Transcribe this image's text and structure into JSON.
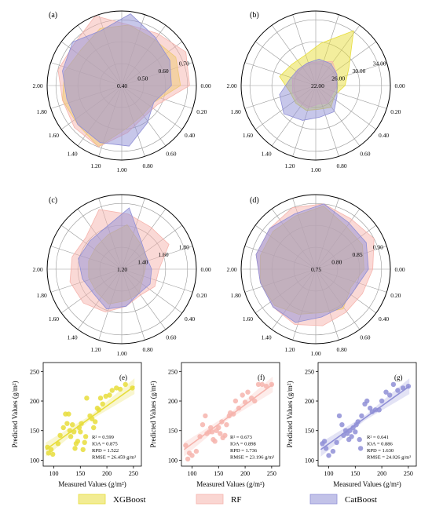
{
  "colors": {
    "xgboost": "#e7dd3b",
    "rf": "#f6b4ad",
    "catboost": "#8f8fd6",
    "axis": "#000000",
    "spoke": "#9a9a9a"
  },
  "legend": {
    "items": [
      {
        "label": "XGBoost",
        "color": "#e7dd3b"
      },
      {
        "label": "RF",
        "color": "#f6b4ad"
      },
      {
        "label": "CatBoost",
        "color": "#8f8fd6"
      }
    ]
  },
  "chart_data": [
    {
      "type": "radar",
      "panel": "(a)",
      "angle_labels": [
        "0.00",
        "0.20",
        "0.40",
        "0.60",
        "0.80",
        "1.00",
        "1.20",
        "1.40",
        "1.60",
        "1.80",
        "2.00"
      ],
      "rings": [
        "0.40",
        "0.50",
        "0.60",
        "0.70"
      ],
      "rmin": 0.4,
      "rmax": 0.73,
      "series": [
        {
          "name": "XGBoost",
          "values": [
            0.66,
            0.67,
            0.65,
            0.67,
            0.67,
            0.64,
            0.66,
            0.67,
            0.66,
            0.69,
            0.59,
            0.56,
            0.56
          ]
        },
        {
          "name": "RF",
          "values": [
            0.7,
            0.72,
            0.68,
            0.67,
            0.73,
            0.68,
            0.69,
            0.67,
            0.68,
            0.69,
            0.61,
            0.57,
            0.58
          ]
        },
        {
          "name": "CatBoost",
          "values": [
            0.62,
            0.64,
            0.66,
            0.72,
            0.66,
            0.69,
            0.67,
            0.65,
            0.66,
            0.67,
            0.67,
            0.6,
            0.56
          ]
        }
      ]
    },
    {
      "type": "radar",
      "panel": "(b)",
      "angle_labels": [
        "0.00",
        "0.20",
        "0.40",
        "0.60",
        "0.80",
        "1.00",
        "1.20",
        "1.40",
        "1.60",
        "1.80",
        "2.00"
      ],
      "rings": [
        "22.00",
        "26.00",
        "30.00",
        "34.00"
      ],
      "rmin": 22.0,
      "rmax": 36.0,
      "series": [
        {
          "name": "XGBoost",
          "values": [
            27.5,
            29.0,
            34.5,
            30.0,
            28.0,
            28.0,
            29.0,
            27.0,
            27.0,
            27.0,
            26.5,
            27.0,
            26.0
          ]
        },
        {
          "name": "RF",
          "values": [
            26.0,
            26.5,
            27.5,
            26.5,
            26.5,
            26.5,
            26.5,
            26.5,
            26.5,
            26.5,
            25.5,
            26.0,
            25.5
          ]
        },
        {
          "name": "CatBoost",
          "values": [
            26.0,
            26.5,
            27.0,
            27.0,
            26.5,
            26.5,
            27.0,
            29.0,
            30.0,
            29.0,
            28.0,
            28.0,
            26.5
          ]
        }
      ]
    },
    {
      "type": "radar",
      "panel": "(c)",
      "angle_labels": [
        "0.00",
        "0.20",
        "0.40",
        "0.60",
        "0.80",
        "1.00",
        "1.20",
        "1.40",
        "1.60",
        "1.80",
        "2.00"
      ],
      "rings": [
        "1.20",
        "1.40",
        "1.60",
        "1.80"
      ],
      "rmin": 1.2,
      "rmax": 1.9,
      "series": [
        {
          "name": "XGBoost",
          "values": [
            1.42,
            1.46,
            1.5,
            1.62,
            1.55,
            1.52,
            1.52,
            1.52,
            1.52,
            1.55,
            1.5,
            1.48,
            1.42
          ]
        },
        {
          "name": "RF",
          "values": [
            1.55,
            1.7,
            1.68,
            1.72,
            1.8,
            1.65,
            1.68,
            1.7,
            1.68,
            1.63,
            1.55,
            1.5,
            1.55
          ]
        },
        {
          "name": "CatBoost",
          "values": [
            1.48,
            1.46,
            1.52,
            1.78,
            1.62,
            1.6,
            1.62,
            1.58,
            1.55,
            1.6,
            1.55,
            1.48,
            1.5
          ]
        }
      ]
    },
    {
      "type": "radar",
      "panel": "(d)",
      "angle_labels": [
        "0.00",
        "0.20",
        "0.40",
        "0.60",
        "0.80",
        "1.00",
        "1.20",
        "1.40",
        "1.60",
        "1.80",
        "2.00"
      ],
      "rings": [
        "0.75",
        "0.80",
        "0.85",
        "0.90"
      ],
      "rmin": 0.75,
      "rmax": 0.92,
      "series": [
        {
          "name": "XGBoost",
          "values": [
            0.86,
            0.87,
            0.87,
            0.895,
            0.88,
            0.88,
            0.88,
            0.88,
            0.875,
            0.86,
            0.85,
            0.86,
            0.84
          ]
        },
        {
          "name": "RF",
          "values": [
            0.88,
            0.9,
            0.89,
            0.9,
            0.9,
            0.89,
            0.89,
            0.88,
            0.88,
            0.885,
            0.88,
            0.87,
            0.87
          ]
        },
        {
          "name": "CatBoost",
          "values": [
            0.87,
            0.88,
            0.88,
            0.9,
            0.885,
            0.89,
            0.89,
            0.88,
            0.88,
            0.88,
            0.86,
            0.855,
            0.85
          ]
        }
      ]
    },
    {
      "type": "scatter",
      "panel": "(e)",
      "series_name": "XGBoost",
      "xlabel": "Measured Values (g/m²)",
      "ylabel": "Predicted Values (g/m²)",
      "xlim": [
        80,
        265
      ],
      "ylim": [
        90,
        265
      ],
      "xticks": [
        "100",
        "150",
        "200",
        "250"
      ],
      "yticks": [
        "100",
        "150",
        "200",
        "250"
      ],
      "fit": {
        "x": [
          85,
          252
        ],
        "y": [
          118,
          225
        ]
      },
      "stats": [
        "R² = 0.599",
        "IOA = 0.875",
        "RPD = 1.522",
        "RMSE = 26.459 g/m²"
      ],
      "points": [
        [
          88,
          122
        ],
        [
          90,
          112
        ],
        [
          95,
          118
        ],
        [
          98,
          110
        ],
        [
          108,
          128
        ],
        [
          112,
          142
        ],
        [
          118,
          155
        ],
        [
          122,
          178
        ],
        [
          125,
          162
        ],
        [
          128,
          178
        ],
        [
          130,
          150
        ],
        [
          132,
          140
        ],
        [
          135,
          160
        ],
        [
          138,
          148
        ],
        [
          140,
          120
        ],
        [
          142,
          128
        ],
        [
          145,
          132
        ],
        [
          148,
          155
        ],
        [
          150,
          148
        ],
        [
          152,
          162
        ],
        [
          155,
          118
        ],
        [
          158,
          130
        ],
        [
          160,
          140
        ],
        [
          162,
          205
        ],
        [
          168,
          175
        ],
        [
          172,
          170
        ],
        [
          175,
          155
        ],
        [
          178,
          165
        ],
        [
          182,
          188
        ],
        [
          185,
          185
        ],
        [
          188,
          205
        ],
        [
          192,
          195
        ],
        [
          198,
          208
        ],
        [
          205,
          210
        ],
        [
          210,
          218
        ],
        [
          218,
          222
        ],
        [
          225,
          220
        ],
        [
          235,
          228
        ],
        [
          248,
          222
        ]
      ]
    },
    {
      "type": "scatter",
      "panel": "(f)",
      "series_name": "RF",
      "xlabel": "Measured Values (g/m²)",
      "ylabel": "Predicted Values (g/m²)",
      "xlim": [
        80,
        265
      ],
      "ylim": [
        90,
        265
      ],
      "xticks": [
        "100",
        "150",
        "200",
        "250"
      ],
      "yticks": [
        "100",
        "150",
        "200",
        "250"
      ],
      "fit": {
        "x": [
          85,
          252
        ],
        "y": [
          118,
          228
        ]
      },
      "stats": [
        "R² = 0.673",
        "IOA = 0.898",
        "RPD = 1.736",
        "RMSE = 23.196 g/m²"
      ],
      "points": [
        [
          88,
          125
        ],
        [
          92,
          102
        ],
        [
          95,
          112
        ],
        [
          100,
          108
        ],
        [
          108,
          115
        ],
        [
          115,
          140
        ],
        [
          120,
          160
        ],
        [
          125,
          175
        ],
        [
          128,
          145
        ],
        [
          132,
          148
        ],
        [
          135,
          155
        ],
        [
          138,
          148
        ],
        [
          140,
          135
        ],
        [
          143,
          132
        ],
        [
          146,
          150
        ],
        [
          150,
          155
        ],
        [
          153,
          145
        ],
        [
          156,
          165
        ],
        [
          158,
          138
        ],
        [
          162,
          142
        ],
        [
          165,
          160
        ],
        [
          170,
          175
        ],
        [
          172,
          180
        ],
        [
          178,
          178
        ],
        [
          182,
          200
        ],
        [
          188,
          188
        ],
        [
          195,
          210
        ],
        [
          200,
          198
        ],
        [
          205,
          215
        ],
        [
          212,
          205
        ],
        [
          218,
          200
        ],
        [
          225,
          228
        ],
        [
          232,
          228
        ],
        [
          240,
          225
        ],
        [
          250,
          228
        ]
      ]
    },
    {
      "type": "scatter",
      "panel": "(g)",
      "series_name": "CatBoost",
      "xlabel": "Measured Values (g/m²)",
      "ylabel": "Predicted Values (g/m²)",
      "xlim": [
        80,
        265
      ],
      "ylim": [
        90,
        265
      ],
      "xticks": [
        "100",
        "150",
        "200",
        "250"
      ],
      "yticks": [
        "100",
        "150",
        "200",
        "250"
      ],
      "fit": {
        "x": [
          85,
          252
        ],
        "y": [
          118,
          225
        ]
      },
      "stats": [
        "R² = 0.641",
        "IOA = 0.886",
        "RPD = 1.630",
        "RMSE = 24.026 g/m²"
      ],
      "points": [
        [
          88,
          128
        ],
        [
          92,
          132
        ],
        [
          95,
          120
        ],
        [
          100,
          108
        ],
        [
          108,
          115
        ],
        [
          115,
          130
        ],
        [
          120,
          175
        ],
        [
          125,
          160
        ],
        [
          128,
          142
        ],
        [
          132,
          150
        ],
        [
          135,
          145
        ],
        [
          138,
          135
        ],
        [
          140,
          150
        ],
        [
          143,
          140
        ],
        [
          146,
          155
        ],
        [
          150,
          148
        ],
        [
          152,
          160
        ],
        [
          155,
          165
        ],
        [
          158,
          135
        ],
        [
          160,
          120
        ],
        [
          162,
          175
        ],
        [
          168,
          195
        ],
        [
          172,
          200
        ],
        [
          178,
          188
        ],
        [
          182,
          182
        ],
        [
          188,
          185
        ],
        [
          195,
          185
        ],
        [
          200,
          200
        ],
        [
          208,
          215
        ],
        [
          215,
          210
        ],
        [
          222,
          228
        ],
        [
          230,
          218
        ],
        [
          240,
          222
        ],
        [
          250,
          225
        ]
      ]
    }
  ]
}
